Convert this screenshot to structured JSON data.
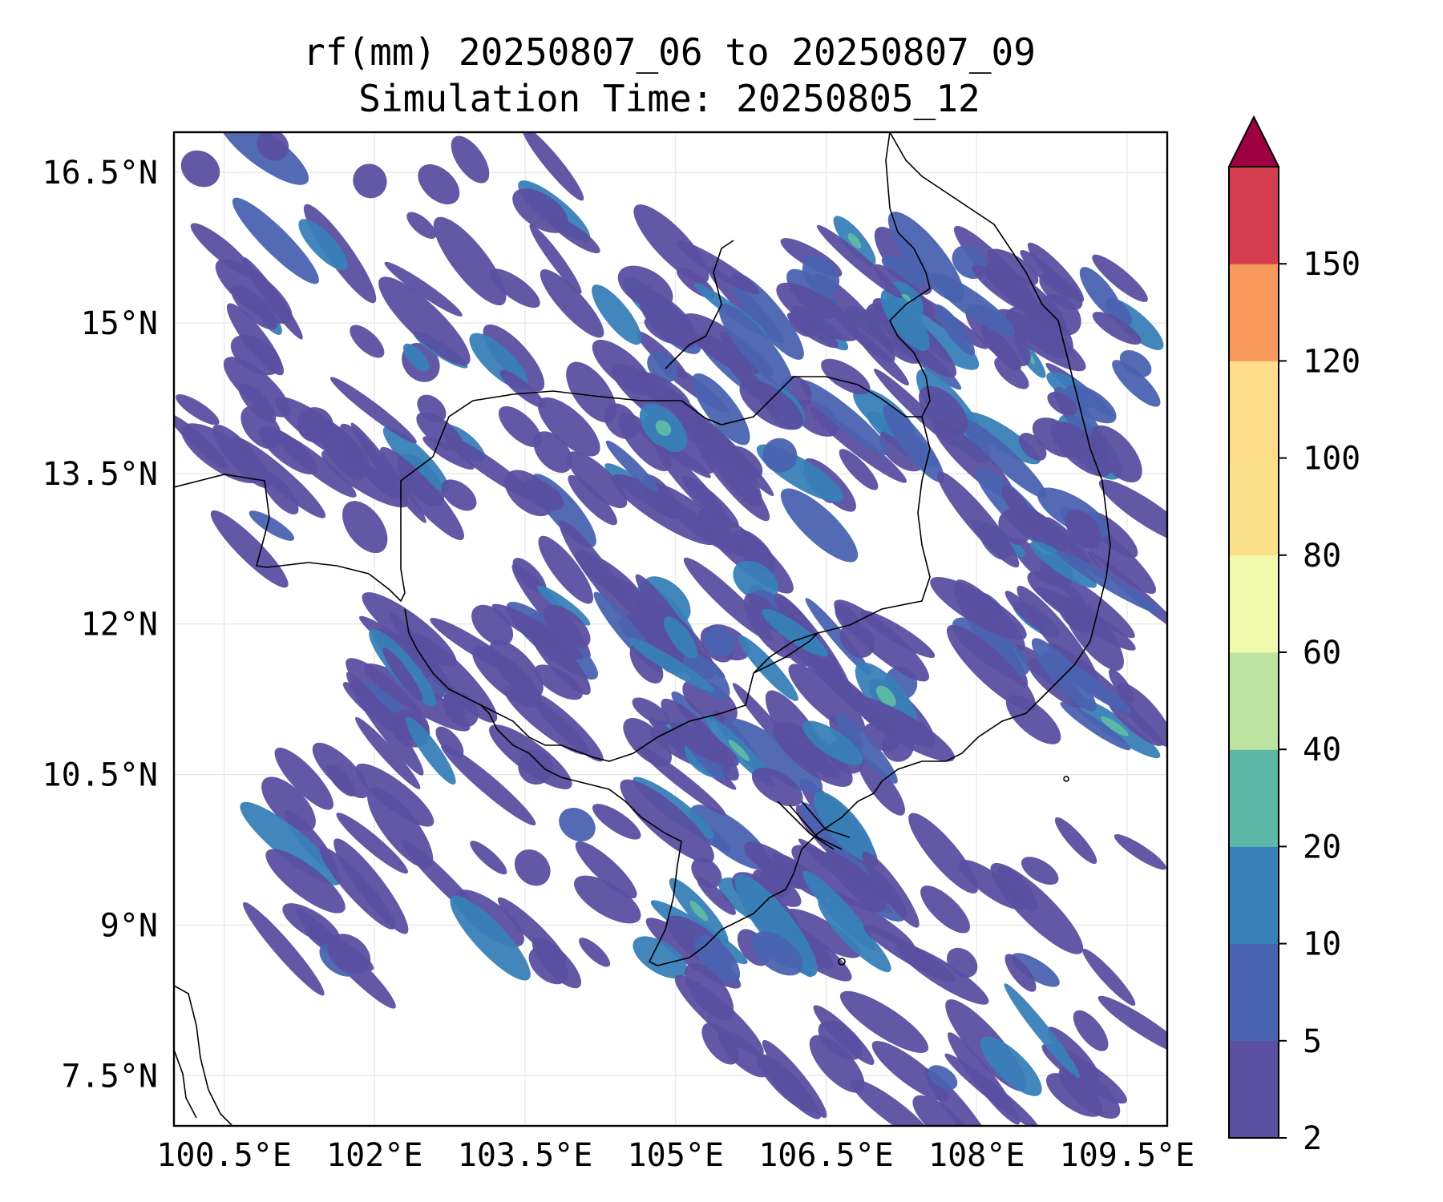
{
  "title": {
    "line1": "rf(mm) 20250807_06 to 20250807_09",
    "line2": "Simulation Time: 20250805_12"
  },
  "map": {
    "lon_range": [
      100.0,
      109.9
    ],
    "lat_range": [
      7.0,
      16.9
    ],
    "lon_ticks": [
      {
        "value": 100.5,
        "label": "100.5°E"
      },
      {
        "value": 102.0,
        "label": "102°E"
      },
      {
        "value": 103.5,
        "label": "103.5°E"
      },
      {
        "value": 105.0,
        "label": "105°E"
      },
      {
        "value": 106.5,
        "label": "106.5°E"
      },
      {
        "value": 108.0,
        "label": "108°E"
      },
      {
        "value": 109.5,
        "label": "109.5°E"
      }
    ],
    "lat_ticks": [
      {
        "value": 16.5,
        "label": "16.5°N"
      },
      {
        "value": 15.0,
        "label": "15°N"
      },
      {
        "value": 13.5,
        "label": "13.5°N"
      },
      {
        "value": 12.0,
        "label": "12°N"
      },
      {
        "value": 10.5,
        "label": "10.5°N"
      },
      {
        "value": 9.0,
        "label": "9°N"
      },
      {
        "value": 7.5,
        "label": "7.5°N"
      }
    ],
    "grid": true
  },
  "colorbar": {
    "levels": [
      "2",
      "5",
      "10",
      "20",
      "40",
      "60",
      "80",
      "100",
      "120",
      "150"
    ],
    "colors": [
      "#5a4fa0",
      "#4a63b0",
      "#3880b8",
      "#5cb7a6",
      "#bde3a0",
      "#f1f9ac",
      "#fbe08a",
      "#fddd8a",
      "#f89a5c",
      "#d43d4f"
    ],
    "extend_color": "#9e0142",
    "extend": "max"
  },
  "rain": {
    "colors": {
      "low": "#5a4fa0",
      "mid": "#4a63b0",
      "high": "#3880b8",
      "peak": "#5cb7a6"
    }
  }
}
